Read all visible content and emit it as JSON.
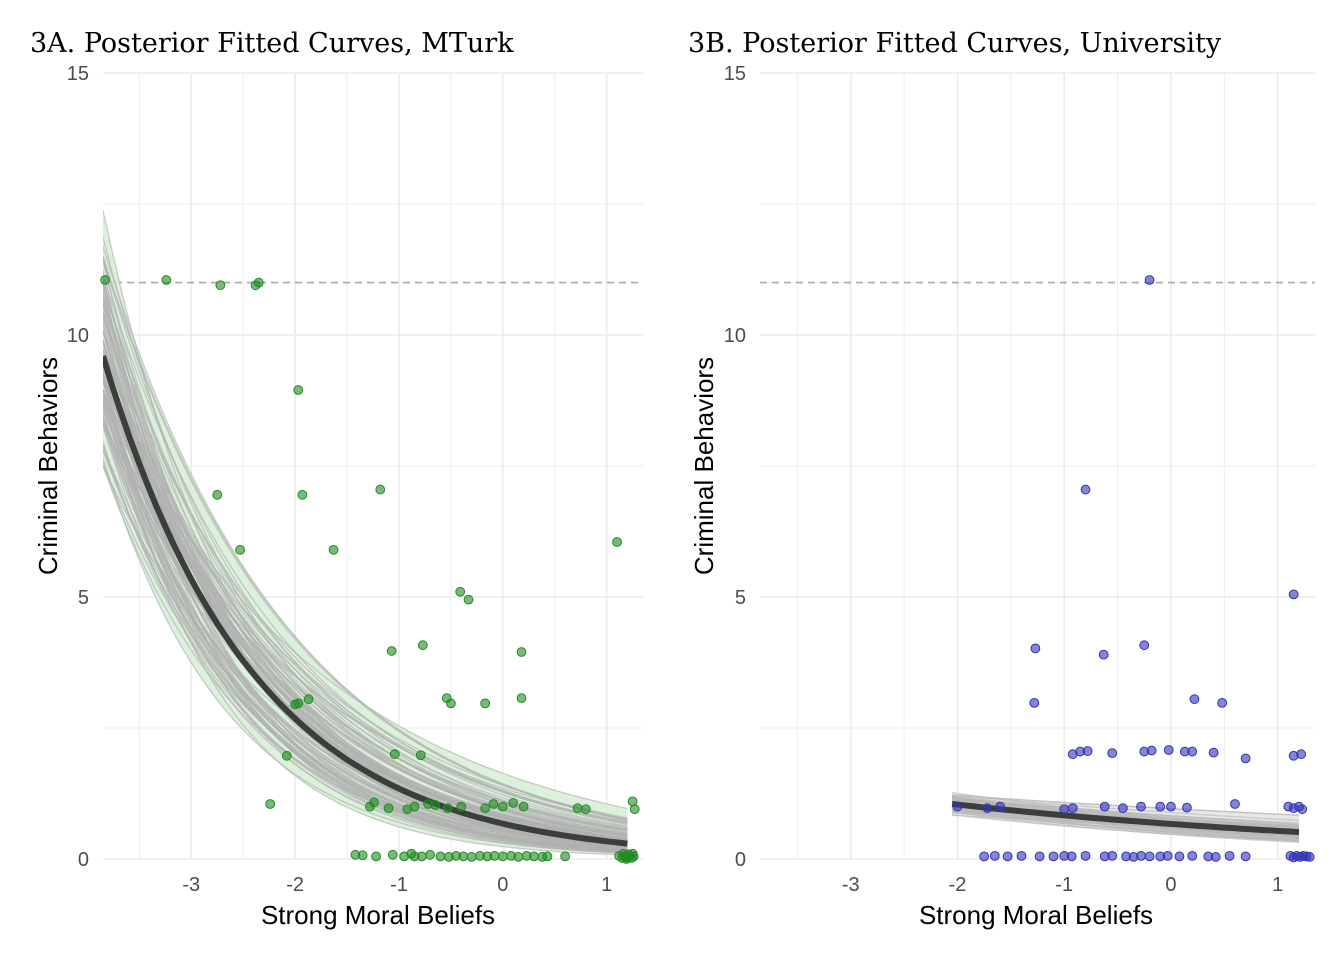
{
  "chart_data": [
    {
      "type": "scatter",
      "title": "3A. Posterior Fitted Curves, MTurk",
      "xlabel": "Strong Moral Beliefs",
      "ylabel": "Criminal Behaviors",
      "xlim": [
        -3.85,
        1.35
      ],
      "ylim": [
        0,
        15
      ],
      "xticks": [
        "-3",
        "-2",
        "-1",
        "0",
        "1"
      ],
      "yticks": [
        "0",
        "5",
        "10",
        "15"
      ],
      "grid": true,
      "reference_line_y": 11,
      "point_color": "#228B22",
      "ribbon_color": "#d8f0d8",
      "draw_color": "#b0b0b0",
      "mean_color": "#3a3f3a",
      "fit": {
        "x_range": [
          -3.85,
          1.2
        ],
        "mean_at_min": 9.6,
        "slope": -0.69,
        "n_draws": 110,
        "slope_sd": 0.1,
        "intercept_sd": 0.12
      },
      "points": [
        {
          "x": -3.83,
          "y": 11.05
        },
        {
          "x": -3.24,
          "y": 11.05
        },
        {
          "x": -2.72,
          "y": 10.95
        },
        {
          "x": -2.38,
          "y": 10.95
        },
        {
          "x": -2.35,
          "y": 11.0
        },
        {
          "x": -1.97,
          "y": 8.95
        },
        {
          "x": -1.93,
          "y": 6.95
        },
        {
          "x": -2.75,
          "y": 6.95
        },
        {
          "x": -2.53,
          "y": 5.9
        },
        {
          "x": -1.63,
          "y": 5.9
        },
        {
          "x": -1.18,
          "y": 7.05
        },
        {
          "x": 1.1,
          "y": 6.05
        },
        {
          "x": -0.41,
          "y": 5.1
        },
        {
          "x": -0.33,
          "y": 4.95
        },
        {
          "x": -1.07,
          "y": 3.97
        },
        {
          "x": -0.77,
          "y": 4.08
        },
        {
          "x": 0.18,
          "y": 3.95
        },
        {
          "x": -0.54,
          "y": 3.07
        },
        {
          "x": -0.5,
          "y": 2.97
        },
        {
          "x": -0.17,
          "y": 2.97
        },
        {
          "x": 0.18,
          "y": 3.07
        },
        {
          "x": -2.0,
          "y": 2.95
        },
        {
          "x": -1.97,
          "y": 2.97
        },
        {
          "x": -1.87,
          "y": 3.05
        },
        {
          "x": -2.08,
          "y": 1.97
        },
        {
          "x": -1.04,
          "y": 2.0
        },
        {
          "x": -0.79,
          "y": 1.98
        },
        {
          "x": -2.24,
          "y": 1.05
        },
        {
          "x": -1.28,
          "y": 1.0
        },
        {
          "x": -1.24,
          "y": 1.08
        },
        {
          "x": -1.1,
          "y": 0.97
        },
        {
          "x": -0.92,
          "y": 0.95
        },
        {
          "x": -0.85,
          "y": 1.0
        },
        {
          "x": -0.72,
          "y": 1.05
        },
        {
          "x": -0.65,
          "y": 1.03
        },
        {
          "x": -0.53,
          "y": 0.97
        },
        {
          "x": -0.4,
          "y": 1.0
        },
        {
          "x": -0.17,
          "y": 0.97
        },
        {
          "x": -0.09,
          "y": 1.05
        },
        {
          "x": 0.0,
          "y": 1.0
        },
        {
          "x": 0.1,
          "y": 1.07
        },
        {
          "x": 0.2,
          "y": 1.0
        },
        {
          "x": 0.72,
          "y": 0.97
        },
        {
          "x": 0.8,
          "y": 0.95
        },
        {
          "x": 1.25,
          "y": 1.1
        },
        {
          "x": 1.27,
          "y": 0.95
        },
        {
          "x": -1.42,
          "y": 0.08
        },
        {
          "x": -1.35,
          "y": 0.07
        },
        {
          "x": -1.22,
          "y": 0.05
        },
        {
          "x": -1.06,
          "y": 0.08
        },
        {
          "x": -0.95,
          "y": 0.05
        },
        {
          "x": -0.88,
          "y": 0.1
        },
        {
          "x": -0.85,
          "y": 0.05
        },
        {
          "x": -0.78,
          "y": 0.05
        },
        {
          "x": -0.7,
          "y": 0.08
        },
        {
          "x": -0.6,
          "y": 0.05
        },
        {
          "x": -0.52,
          "y": 0.04
        },
        {
          "x": -0.45,
          "y": 0.06
        },
        {
          "x": -0.38,
          "y": 0.05
        },
        {
          "x": -0.3,
          "y": 0.04
        },
        {
          "x": -0.22,
          "y": 0.06
        },
        {
          "x": -0.15,
          "y": 0.05
        },
        {
          "x": -0.08,
          "y": 0.06
        },
        {
          "x": 0.0,
          "y": 0.05
        },
        {
          "x": 0.08,
          "y": 0.06
        },
        {
          "x": 0.15,
          "y": 0.04
        },
        {
          "x": 0.23,
          "y": 0.06
        },
        {
          "x": 0.3,
          "y": 0.05
        },
        {
          "x": 0.38,
          "y": 0.04
        },
        {
          "x": 0.43,
          "y": 0.05
        },
        {
          "x": 0.6,
          "y": 0.05
        },
        {
          "x": 1.12,
          "y": 0.06
        },
        {
          "x": 1.15,
          "y": 0.02
        },
        {
          "x": 1.18,
          "y": 0.05
        },
        {
          "x": 1.2,
          "y": 0.03
        },
        {
          "x": 1.22,
          "y": 0.06
        },
        {
          "x": 1.24,
          "y": 0.02
        },
        {
          "x": 1.26,
          "y": 0.05
        },
        {
          "x": 1.16,
          "y": 0.1
        },
        {
          "x": 1.21,
          "y": 0.09
        },
        {
          "x": 1.25,
          "y": 0.1
        },
        {
          "x": 1.19,
          "y": 0.0
        }
      ]
    },
    {
      "type": "scatter",
      "title": "3B. Posterior Fitted Curves, University",
      "xlabel": "Strong Moral Beliefs",
      "ylabel": "Criminal Behaviors",
      "xlim": [
        -3.85,
        1.35
      ],
      "ylim": [
        0,
        15
      ],
      "xticks": [
        "-3",
        "-2",
        "-1",
        "0",
        "1"
      ],
      "yticks": [
        "0",
        "5",
        "10",
        "15"
      ],
      "grid": true,
      "reference_line_y": 11,
      "point_color": "#3333b8",
      "ribbon_color": "#e6e6e6",
      "draw_color": "#b8b8b8",
      "mean_color": "#3a3f3a",
      "fit": {
        "x_range": [
          -2.05,
          1.2
        ],
        "mean_at_min": 1.05,
        "slope": -0.22,
        "n_draws": 60,
        "slope_sd": 0.07,
        "intercept_sd": 0.1
      },
      "points": [
        {
          "x": -0.2,
          "y": 11.05
        },
        {
          "x": -0.8,
          "y": 7.05
        },
        {
          "x": 1.15,
          "y": 5.05
        },
        {
          "x": -1.27,
          "y": 4.02
        },
        {
          "x": -0.25,
          "y": 4.08
        },
        {
          "x": -0.63,
          "y": 3.9
        },
        {
          "x": -1.28,
          "y": 2.98
        },
        {
          "x": 0.22,
          "y": 3.05
        },
        {
          "x": 0.48,
          "y": 2.98
        },
        {
          "x": -0.92,
          "y": 2.0
        },
        {
          "x": -0.85,
          "y": 2.05
        },
        {
          "x": -0.78,
          "y": 2.06
        },
        {
          "x": -0.55,
          "y": 2.02
        },
        {
          "x": -0.25,
          "y": 2.05
        },
        {
          "x": -0.18,
          "y": 2.07
        },
        {
          "x": -0.02,
          "y": 2.08
        },
        {
          "x": 0.13,
          "y": 2.05
        },
        {
          "x": 0.2,
          "y": 2.05
        },
        {
          "x": 0.4,
          "y": 2.03
        },
        {
          "x": 0.7,
          "y": 1.92
        },
        {
          "x": 1.15,
          "y": 1.97
        },
        {
          "x": 1.22,
          "y": 2.0
        },
        {
          "x": -2.0,
          "y": 1.0
        },
        {
          "x": -1.72,
          "y": 0.97
        },
        {
          "x": -1.6,
          "y": 1.0
        },
        {
          "x": -1.0,
          "y": 0.95
        },
        {
          "x": -0.92,
          "y": 0.97
        },
        {
          "x": -0.62,
          "y": 1.0
        },
        {
          "x": -0.45,
          "y": 0.97
        },
        {
          "x": -0.28,
          "y": 1.0
        },
        {
          "x": -0.1,
          "y": 1.0
        },
        {
          "x": 0.0,
          "y": 1.0
        },
        {
          "x": 0.15,
          "y": 0.98
        },
        {
          "x": 0.6,
          "y": 1.05
        },
        {
          "x": 1.1,
          "y": 1.0
        },
        {
          "x": 1.15,
          "y": 0.97
        },
        {
          "x": 1.2,
          "y": 1.0
        },
        {
          "x": 1.23,
          "y": 0.95
        },
        {
          "x": -1.75,
          "y": 0.05
        },
        {
          "x": -1.65,
          "y": 0.06
        },
        {
          "x": -1.53,
          "y": 0.05
        },
        {
          "x": -1.4,
          "y": 0.06
        },
        {
          "x": -1.23,
          "y": 0.05
        },
        {
          "x": -1.1,
          "y": 0.05
        },
        {
          "x": -1.0,
          "y": 0.06
        },
        {
          "x": -0.93,
          "y": 0.05
        },
        {
          "x": -0.8,
          "y": 0.06
        },
        {
          "x": -0.62,
          "y": 0.05
        },
        {
          "x": -0.55,
          "y": 0.06
        },
        {
          "x": -0.42,
          "y": 0.05
        },
        {
          "x": -0.35,
          "y": 0.04
        },
        {
          "x": -0.28,
          "y": 0.06
        },
        {
          "x": -0.2,
          "y": 0.05
        },
        {
          "x": -0.1,
          "y": 0.05
        },
        {
          "x": -0.03,
          "y": 0.06
        },
        {
          "x": 0.08,
          "y": 0.05
        },
        {
          "x": 0.2,
          "y": 0.06
        },
        {
          "x": 0.35,
          "y": 0.05
        },
        {
          "x": 0.42,
          "y": 0.04
        },
        {
          "x": 0.55,
          "y": 0.06
        },
        {
          "x": 0.7,
          "y": 0.05
        },
        {
          "x": 1.12,
          "y": 0.06
        },
        {
          "x": 1.15,
          "y": 0.03
        },
        {
          "x": 1.18,
          "y": 0.06
        },
        {
          "x": 1.21,
          "y": 0.04
        },
        {
          "x": 1.24,
          "y": 0.06
        },
        {
          "x": 1.27,
          "y": 0.05
        },
        {
          "x": 1.3,
          "y": 0.04
        }
      ]
    }
  ]
}
